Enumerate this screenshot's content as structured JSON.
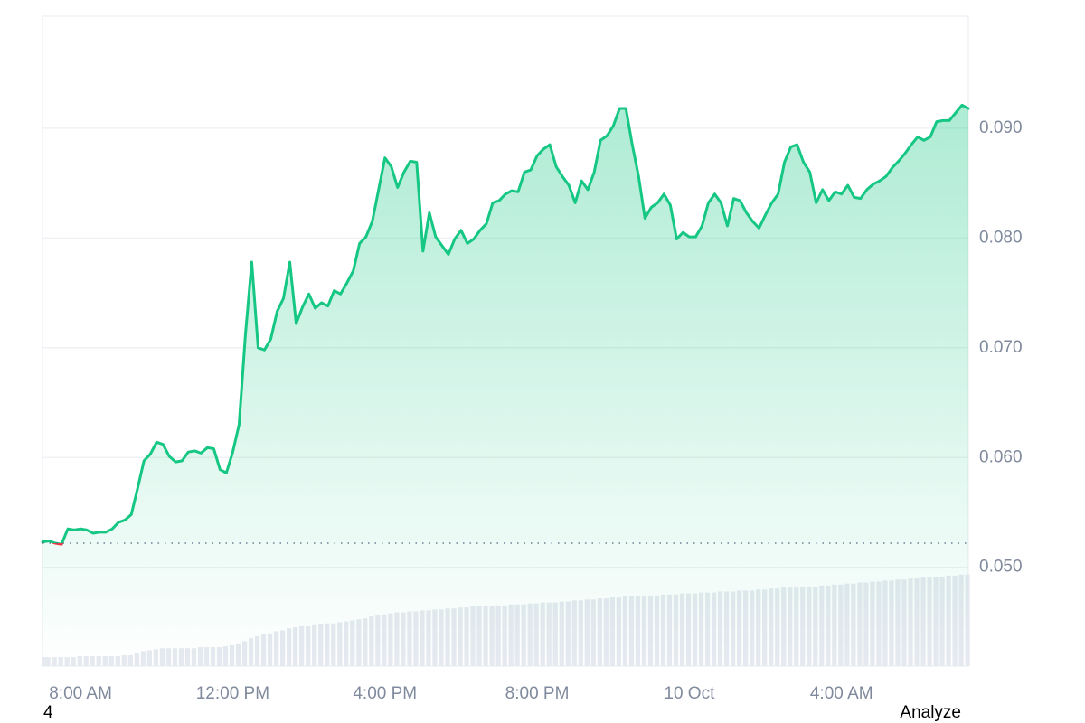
{
  "chart_data": {
    "type": "line",
    "series": [
      {
        "color": "#16c784",
        "down_color": "#ea3943",
        "values": [
          0.0523,
          0.0524,
          0.0522,
          0.0521,
          0.0535,
          0.0534,
          0.0535,
          0.0534,
          0.0531,
          0.0532,
          0.0532,
          0.0535,
          0.0541,
          0.0543,
          0.0548,
          0.0572,
          0.0597,
          0.0603,
          0.0614,
          0.0612,
          0.0601,
          0.0596,
          0.0597,
          0.0605,
          0.0606,
          0.0604,
          0.0609,
          0.0608,
          0.0589,
          0.0586,
          0.0605,
          0.063,
          0.0712,
          0.0778,
          0.07,
          0.0698,
          0.0708,
          0.0733,
          0.0745,
          0.0778,
          0.0722,
          0.0737,
          0.0749,
          0.0736,
          0.0741,
          0.0738,
          0.0752,
          0.0749,
          0.0759,
          0.077,
          0.0795,
          0.0801,
          0.0815,
          0.0844,
          0.0873,
          0.0865,
          0.0846,
          0.086,
          0.087,
          0.0869,
          0.0788,
          0.0823,
          0.0801,
          0.0793,
          0.0785,
          0.0799,
          0.0807,
          0.0795,
          0.0799,
          0.0807,
          0.0813,
          0.0832,
          0.0834,
          0.084,
          0.0843,
          0.0842,
          0.086,
          0.0862,
          0.0875,
          0.0881,
          0.0885,
          0.0865,
          0.0856,
          0.0848,
          0.0832,
          0.0852,
          0.0844,
          0.086,
          0.0889,
          0.0893,
          0.0902,
          0.0918,
          0.0918,
          0.0885,
          0.0856,
          0.0818,
          0.0828,
          0.0832,
          0.084,
          0.083,
          0.0799,
          0.0805,
          0.0801,
          0.0801,
          0.0811,
          0.0832,
          0.084,
          0.0832,
          0.0811,
          0.0836,
          0.0834,
          0.0823,
          0.0815,
          0.0809,
          0.0821,
          0.0832,
          0.084,
          0.0869,
          0.0883,
          0.0885,
          0.0869,
          0.086,
          0.0832,
          0.0844,
          0.0834,
          0.0842,
          0.084,
          0.0848,
          0.0837,
          0.0836,
          0.0844,
          0.0849,
          0.0852,
          0.0856,
          0.0864,
          0.087,
          0.0877,
          0.0885,
          0.0892,
          0.0889,
          0.0892,
          0.0906,
          0.0907,
          0.0907,
          0.0914,
          0.0921,
          0.0918
        ]
      }
    ],
    "baseline": 0.0522,
    "volume": {
      "color": "#e6e9f0",
      "ylim": [
        0,
        100
      ],
      "values": [
        9,
        9,
        9,
        9,
        9,
        9,
        10,
        10,
        10,
        10,
        10,
        10,
        10,
        11,
        11,
        13,
        15,
        16,
        17,
        18,
        18,
        18,
        18,
        18,
        18,
        19,
        19,
        19,
        19,
        20,
        21,
        22,
        25,
        28,
        30,
        32,
        33,
        35,
        36,
        38,
        39,
        40,
        40,
        41,
        42,
        43,
        43,
        44,
        45,
        46,
        47,
        48,
        50,
        51,
        52,
        53,
        54,
        54,
        55,
        55,
        56,
        56,
        57,
        57,
        58,
        58,
        59,
        59,
        60,
        60,
        60,
        61,
        61,
        61,
        62,
        62,
        62,
        63,
        63,
        64,
        64,
        64,
        65,
        65,
        66,
        66,
        67,
        67,
        68,
        68,
        69,
        69,
        70,
        70,
        70,
        71,
        71,
        71,
        72,
        72,
        72,
        73,
        73,
        73,
        74,
        74,
        74,
        75,
        75,
        75,
        76,
        76,
        76,
        77,
        77,
        78,
        78,
        79,
        79,
        79,
        80,
        80,
        80,
        81,
        81,
        82,
        82,
        83,
        83,
        84,
        84,
        85,
        85,
        86,
        86,
        87,
        87,
        88,
        88,
        89,
        89,
        90,
        90,
        91,
        91,
        92,
        92
      ]
    },
    "xlim": [
      0,
      146
    ],
    "xticks": [
      {
        "value": 6,
        "label": "8:00 AM"
      },
      {
        "value": 30,
        "label": "12:00 PM"
      },
      {
        "value": 54,
        "label": "4:00 PM"
      },
      {
        "value": 78,
        "label": "8:00 PM"
      },
      {
        "value": 102,
        "label": "10 Oct"
      },
      {
        "value": 126,
        "label": "4:00 AM"
      }
    ],
    "ylim": [
      0.041,
      0.1002
    ],
    "yticks": [
      {
        "value": 0.05,
        "label": "0.050"
      },
      {
        "value": 0.06,
        "label": "0.060"
      },
      {
        "value": 0.07,
        "label": "0.070"
      },
      {
        "value": 0.08,
        "label": "0.080"
      },
      {
        "value": 0.09,
        "label": "0.090"
      }
    ],
    "grid": true
  },
  "footer": {
    "left": "4",
    "right": "Analyze"
  }
}
